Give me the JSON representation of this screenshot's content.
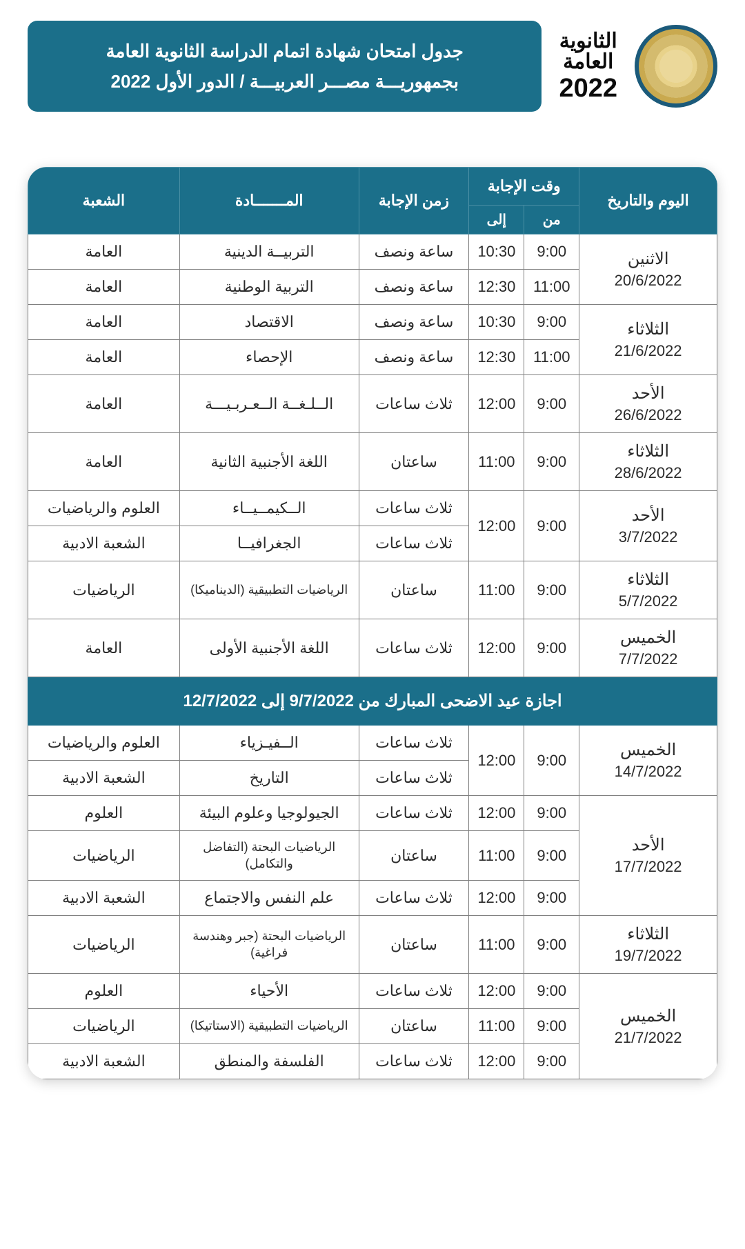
{
  "header": {
    "title_line1": "جدول امتحان شهادة اتمام الدراسة الثانوية العامة",
    "title_line2": "بجمهوريـــة مصـــر العربيـــة / الدور الأول 2022",
    "logo_lines": [
      "الثانوية",
      "العامة"
    ],
    "logo_year": "2022"
  },
  "columns": {
    "date": "اليوم والتاريخ",
    "time_group": "وقت الإجابة",
    "time_from": "من",
    "time_to": "إلى",
    "duration": "زمن الإجابة",
    "subject": "المـــــــادة",
    "division": "الشعبة"
  },
  "holiday_text": "اجازة عيد الاضحى المبارك من 9/7/2022 إلى 12/7/2022",
  "rows": [
    {
      "day": "الاثنين",
      "date": "20/6/2022",
      "span": 2,
      "from": "9:00",
      "to": "10:30",
      "dur": "ساعة ونصف",
      "subj": "التربيــة الدينية",
      "div": "العامة"
    },
    {
      "from": "11:00",
      "to": "12:30",
      "dur": "ساعة ونصف",
      "subj": "التربية الوطنية",
      "div": "العامة"
    },
    {
      "day": "الثلاثاء",
      "date": "21/6/2022",
      "span": 2,
      "from": "9:00",
      "to": "10:30",
      "dur": "ساعة ونصف",
      "subj": "الاقتصاد",
      "div": "العامة"
    },
    {
      "from": "11:00",
      "to": "12:30",
      "dur": "ساعة ونصف",
      "subj": "الإحصاء",
      "div": "العامة"
    },
    {
      "day": "الأحد",
      "date": "26/6/2022",
      "span": 1,
      "from": "9:00",
      "to": "12:00",
      "dur": "ثلاث ساعات",
      "subj": "الــلـغــة الــعـربـيـــة",
      "div": "العامة"
    },
    {
      "day": "الثلاثاء",
      "date": "28/6/2022",
      "span": 1,
      "from": "9:00",
      "to": "11:00",
      "dur": "ساعتان",
      "subj": "اللغة الأجنبية الثانية",
      "div": "العامة"
    },
    {
      "day": "الأحد",
      "date": "3/7/2022",
      "span": 2,
      "from": "9:00",
      "to": "12:00",
      "from_span": 2,
      "to_span": 2,
      "dur": "ثلاث ساعات",
      "subj": "الــكيمــيــاء",
      "div": "العلوم والرياضيات"
    },
    {
      "dur": "ثلاث ساعات",
      "subj": "الجغرافيــا",
      "div": "الشعبة الادبية"
    },
    {
      "day": "الثلاثاء",
      "date": "5/7/2022",
      "span": 1,
      "from": "9:00",
      "to": "11:00",
      "dur": "ساعتان",
      "subj": "الرياضيات التطبيقية (الديناميكا)",
      "div": "الرياضيات",
      "subnote": true
    },
    {
      "day": "الخميس",
      "date": "7/7/2022",
      "span": 1,
      "from": "9:00",
      "to": "12:00",
      "dur": "ثلاث ساعات",
      "subj": "اللغة الأجنبية الأولى",
      "div": "العامة"
    },
    {
      "holiday": true
    },
    {
      "day": "الخميس",
      "date": "14/7/2022",
      "span": 2,
      "from": "9:00",
      "to": "12:00",
      "from_span": 2,
      "to_span": 2,
      "dur": "ثلاث ساعات",
      "subj": "الــفيـزياء",
      "div": "العلوم والرياضيات"
    },
    {
      "dur": "ثلاث ساعات",
      "subj": "التاريخ",
      "div": "الشعبة الادبية"
    },
    {
      "day": "الأحد",
      "date": "17/7/2022",
      "span": 3,
      "from": "9:00",
      "to": "12:00",
      "dur": "ثلاث ساعات",
      "subj": "الجيولوجيا وعلوم البيئة",
      "div": "العلوم"
    },
    {
      "from": "9:00",
      "to": "11:00",
      "dur": "ساعتان",
      "subj": "الرياضيات البحتة (التفاضل والتكامل)",
      "div": "الرياضيات",
      "subnote": true
    },
    {
      "from": "9:00",
      "to": "12:00",
      "dur": "ثلاث ساعات",
      "subj": "علم النفس والاجتماع",
      "div": "الشعبة الادبية"
    },
    {
      "day": "الثلاثاء",
      "date": "19/7/2022",
      "span": 1,
      "from": "9:00",
      "to": "11:00",
      "dur": "ساعتان",
      "subj": "الرياضيات البحتة (جبر وهندسة فراغية)",
      "div": "الرياضيات",
      "subnote": true
    },
    {
      "day": "الخميس",
      "date": "21/7/2022",
      "span": 3,
      "from": "9:00",
      "to": "12:00",
      "dur": "ثلاث ساعات",
      "subj": "الأحياء",
      "div": "العلوم"
    },
    {
      "from": "9:00",
      "to": "11:00",
      "dur": "ساعتان",
      "subj": "الرياضيات التطبيقية (الاستاتيكا)",
      "div": "الرياضيات",
      "subnote": true
    },
    {
      "from": "9:00",
      "to": "12:00",
      "dur": "ثلاث ساعات",
      "subj": "الفلسفة والمنطق",
      "div": "الشعبة الادبية"
    }
  ]
}
